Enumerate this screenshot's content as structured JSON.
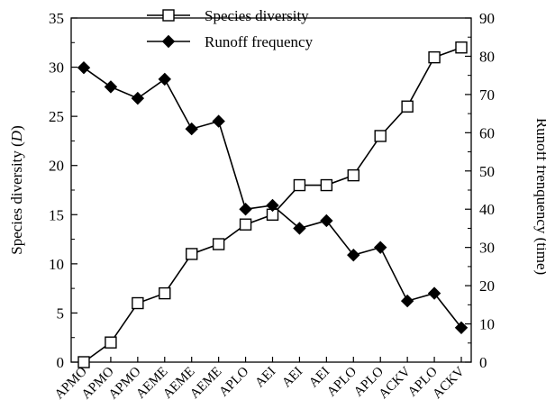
{
  "chart_data": {
    "type": "line",
    "categories": [
      "APMO",
      "APMO",
      "APMO",
      "AEME",
      "AEME",
      "AEME",
      "APLO",
      "AEI",
      "AEI",
      "AEI",
      "APLO",
      "APLO",
      "ACKV",
      "APLO",
      "ACKV"
    ],
    "series": [
      {
        "name": "Species diversity",
        "axis": "left",
        "marker": "open-square",
        "values": [
          0,
          2,
          6,
          7,
          11,
          12,
          14,
          15,
          18,
          18,
          19,
          23,
          26,
          31,
          32
        ]
      },
      {
        "name": "Runoff frequency",
        "axis": "right",
        "marker": "filled-diamond",
        "values": [
          77,
          72,
          69,
          74,
          61,
          63,
          40,
          41,
          35,
          37,
          28,
          30,
          16,
          18,
          9
        ]
      }
    ],
    "ylabel_left": "Species diversity (D)",
    "ylabel_left_prefix": "Species diversity (",
    "ylabel_left_var": "D",
    "ylabel_left_suffix": ")",
    "ylabel_right": "Runoff frenquency (time)",
    "ylim_left": [
      0,
      35
    ],
    "ylim_right": [
      0,
      90
    ],
    "yticks_left": [
      0,
      5,
      10,
      15,
      20,
      25,
      30,
      35
    ],
    "yticks_right": [
      0,
      10,
      20,
      30,
      40,
      50,
      60,
      70,
      80,
      90
    ],
    "grid": false,
    "legend_position": "top-center"
  }
}
